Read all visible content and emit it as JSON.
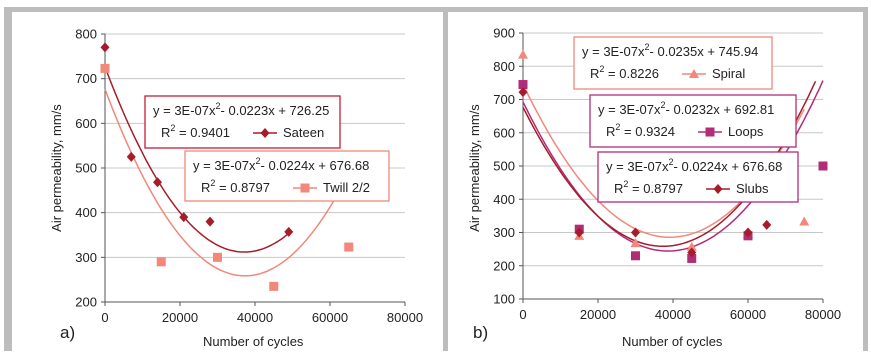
{
  "colors": {
    "frame": "#bdbdbd",
    "grid": "#c8c8c8",
    "sateen": "#a51d2b",
    "twill": "#f2877a",
    "spiral": "#f2877a",
    "loops": "#b22c78",
    "slubs": "#a51d2b",
    "box_border_red": "#c41e3a",
    "box_border_pink": "#f2877a",
    "box_border_magenta": "#b22c78"
  },
  "chart_data": [
    {
      "type": "scatter",
      "panel_label": "a)",
      "xlabel": "Number of cycles",
      "ylabel": "Air permeability, mm/s",
      "xlim": [
        0,
        80000
      ],
      "ylim": [
        200,
        800
      ],
      "xticks": [
        "0",
        "20000",
        "40000",
        "60000",
        "80000"
      ],
      "yticks": [
        "200",
        "300",
        "400",
        "500",
        "600",
        "700",
        "800"
      ],
      "grid": "horizontal",
      "series": [
        {
          "name": "Sateen",
          "marker": "diamond",
          "color_key": "sateen",
          "points": [
            [
              0,
              770
            ],
            [
              7000,
              525
            ],
            [
              14000,
              468
            ],
            [
              21000,
              390
            ],
            [
              28000,
              380
            ],
            [
              49000,
              357
            ]
          ],
          "trend": {
            "a": 3e-07,
            "b": -0.0223,
            "c": 726.25,
            "x_range": [
              0,
              49000
            ]
          },
          "equation": "y = 3E-07x",
          "equation_rest": "- 0.0223x + 726.25",
          "r2": "= 0.9401"
        },
        {
          "name": "Twill 2/2",
          "marker": "square",
          "color_key": "twill",
          "points": [
            [
              0,
              723
            ],
            [
              15000,
              290
            ],
            [
              30000,
              300
            ],
            [
              45000,
              235
            ],
            [
              65000,
              323
            ]
          ],
          "trend": {
            "a": 3e-07,
            "b": -0.0224,
            "c": 676.68,
            "x_range": [
              0,
              65000
            ]
          },
          "equation": "y = 3E-07x",
          "equation_rest": "- 0.0224x + 676.68",
          "r2": "= 0.8797"
        }
      ]
    },
    {
      "type": "scatter",
      "panel_label": "b)",
      "xlabel": "Number of cycles",
      "ylabel": "Air permeability, mm/s",
      "xlim": [
        0,
        80000
      ],
      "ylim": [
        100,
        900
      ],
      "xticks": [
        "0",
        "20000",
        "40000",
        "60000",
        "80000"
      ],
      "yticks": [
        "100",
        "200",
        "300",
        "400",
        "500",
        "600",
        "700",
        "800",
        "900"
      ],
      "grid": "horizontal",
      "series": [
        {
          "name": "Spiral",
          "marker": "triangle",
          "color_key": "spiral",
          "points": [
            [
              0,
              835
            ],
            [
              15000,
              290
            ],
            [
              30000,
              268
            ],
            [
              45000,
              257
            ],
            [
              60000,
              296
            ],
            [
              75000,
              333
            ]
          ],
          "trend": {
            "a": 3e-07,
            "b": -0.0235,
            "c": 745.94,
            "x_range": [
              0,
              75000
            ]
          },
          "equation": "y = 3E-07x",
          "equation_rest": "- 0.0235x + 745.94",
          "r2": "= 0.8226"
        },
        {
          "name": "Loops",
          "marker": "square",
          "color_key": "loops",
          "points": [
            [
              0,
              745
            ],
            [
              15000,
              310
            ],
            [
              30000,
              230
            ],
            [
              45000,
              222
            ],
            [
              60000,
              290
            ],
            [
              80000,
              500
            ]
          ],
          "trend": {
            "a": 3e-07,
            "b": -0.0232,
            "c": 692.81,
            "x_range": [
              0,
              80000
            ]
          },
          "equation": "y = 3E-07x",
          "equation_rest": "- 0.0232x + 692.81",
          "r2": "= 0.9324"
        },
        {
          "name": "Slubs",
          "marker": "diamond",
          "color_key": "slubs",
          "points": [
            [
              0,
              722
            ],
            [
              15000,
              300
            ],
            [
              30000,
              300
            ],
            [
              45000,
              240
            ],
            [
              60000,
              300
            ],
            [
              65000,
              323
            ]
          ],
          "trend": {
            "a": 3e-07,
            "b": -0.0224,
            "c": 676.68,
            "x_range": [
              0,
              78000
            ]
          },
          "equation": "y = 3E-07x",
          "equation_rest": "- 0.0224x + 676.68",
          "r2": "= 0.8797"
        }
      ]
    }
  ]
}
